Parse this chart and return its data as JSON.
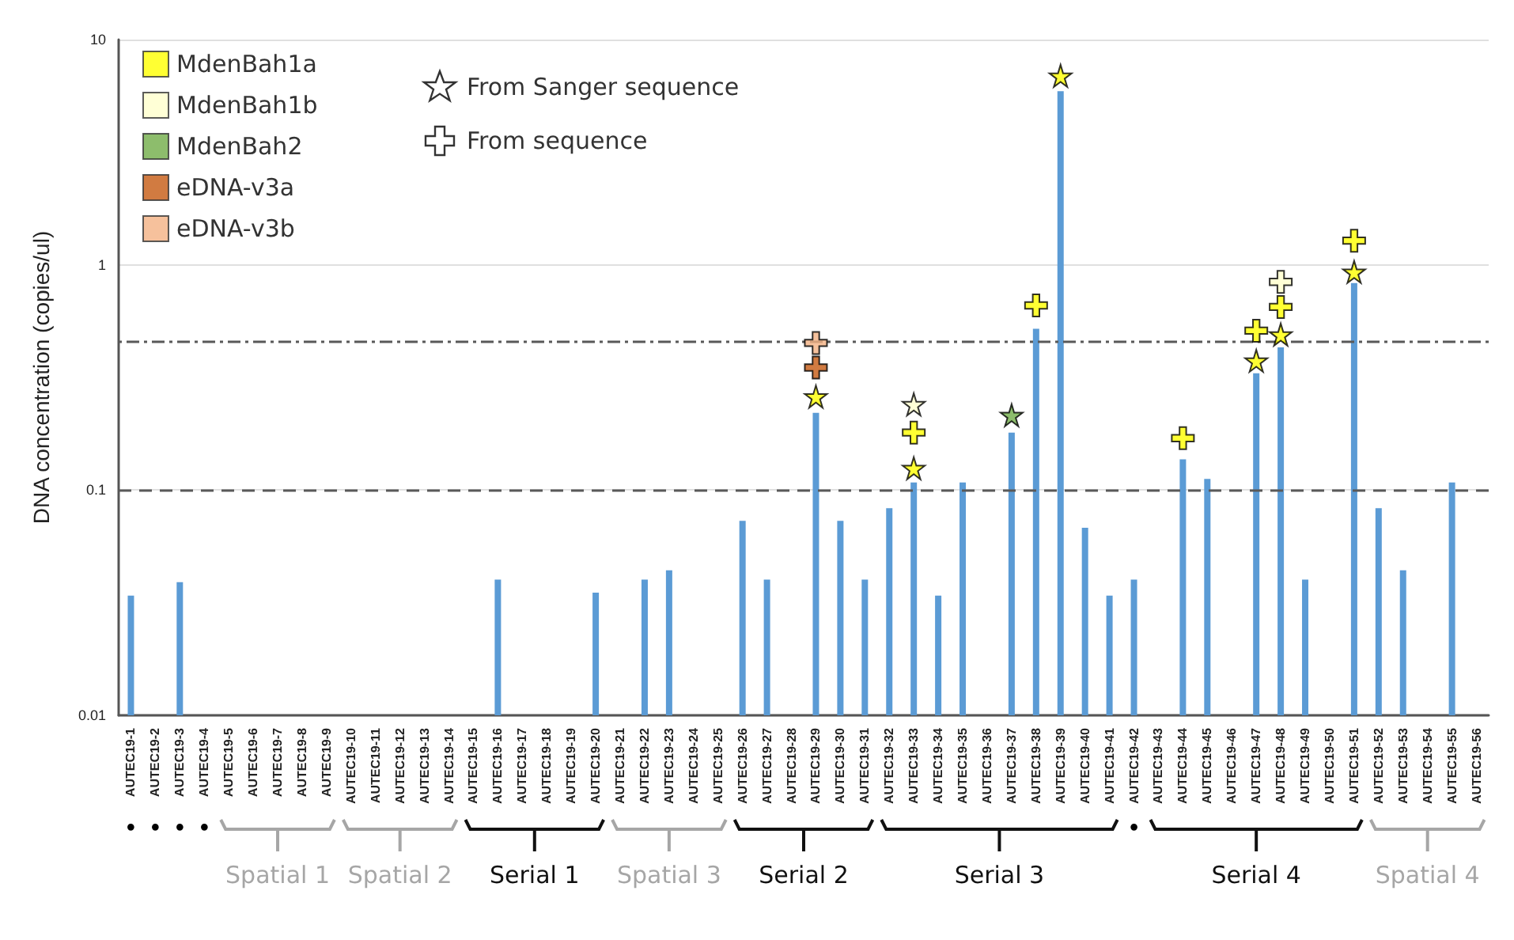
{
  "chart_data": {
    "type": "bar",
    "ylabel": "DNA concentration (copies/ul)",
    "categories": [
      "AUTEC19-1",
      "AUTEC19-2",
      "AUTEC19-3",
      "AUTEC19-4",
      "AUTEC19-5",
      "AUTEC19-6",
      "AUTEC19-7",
      "AUTEC19-8",
      "AUTEC19-9",
      "AUTEC19-10",
      "AUTEC19-11",
      "AUTEC19-12",
      "AUTEC19-13",
      "AUTEC19-14",
      "AUTEC19-15",
      "AUTEC19-16",
      "AUTEC19-17",
      "AUTEC19-18",
      "AUTEC19-19",
      "AUTEC19-20",
      "AUTEC19-21",
      "AUTEC19-22",
      "AUTEC19-23",
      "AUTEC19-24",
      "AUTEC19-25",
      "AUTEC19-26",
      "AUTEC19-27",
      "AUTEC19-28",
      "AUTEC19-29",
      "AUTEC19-30",
      "AUTEC19-31",
      "AUTEC19-32",
      "AUTEC19-33",
      "AUTEC19-34",
      "AUTEC19-35",
      "AUTEC19-36",
      "AUTEC19-37",
      "AUTEC19-38",
      "AUTEC19-39",
      "AUTEC19-40",
      "AUTEC19-41",
      "AUTEC19-42",
      "AUTEC19-43",
      "AUTEC19-44",
      "AUTEC19-45",
      "AUTEC19-46",
      "AUTEC19-47",
      "AUTEC19-48",
      "AUTEC19-49",
      "AUTEC19-50",
      "AUTEC19-51",
      "AUTEC19-52",
      "AUTEC19-53",
      "AUTEC19-54",
      "AUTEC19-55",
      "AUTEC19-56"
    ],
    "series": [
      {
        "color": "#5b9bd5",
        "values": [
          0.034,
          null,
          0.039,
          null,
          null,
          null,
          null,
          null,
          null,
          null,
          null,
          null,
          null,
          null,
          null,
          0.04,
          null,
          null,
          null,
          0.035,
          null,
          0.04,
          0.044,
          null,
          null,
          0.073,
          0.04,
          null,
          0.22,
          0.073,
          0.04,
          0.083,
          0.108,
          0.034,
          0.108,
          null,
          0.18,
          0.52,
          5.9,
          0.068,
          0.034,
          0.04,
          null,
          0.137,
          0.112,
          null,
          0.33,
          0.43,
          0.04,
          null,
          0.83,
          0.083,
          0.044,
          null,
          0.108,
          null
        ]
      },
      {
        "type": "scatter",
        "name": "MdenBah1a",
        "color": "#ffff00",
        "marker": "star",
        "x": [
          "AUTEC19-29",
          "AUTEC19-33",
          "AUTEC19-39",
          "AUTEC19-47",
          "AUTEC19-48",
          "AUTEC19-51"
        ],
        "values": [
          0.26,
          0.125,
          6.9,
          0.375,
          0.49,
          0.93
        ]
      },
      {
        "type": "scatter",
        "color": "#ffff00",
        "marker": "cross",
        "x": [
          "AUTEC19-33",
          "AUTEC19-38",
          "AUTEC19-44",
          "AUTEC19-47",
          "AUTEC19-48",
          "AUTEC19-51"
        ],
        "values": [
          0.18,
          0.66,
          0.17,
          0.51,
          0.65,
          1.28
        ]
      },
      {
        "type": "scatter",
        "name": "MdenBah1b",
        "color": "#ffffcc",
        "marker": "star",
        "x": [
          "AUTEC19-33"
        ],
        "values": [
          0.24
        ]
      },
      {
        "type": "scatter",
        "color": "#ffffcc",
        "marker": "cross",
        "x": [
          "AUTEC19-48"
        ],
        "values": [
          0.84
        ]
      },
      {
        "type": "scatter",
        "name": "MdenBah2",
        "color": "#70ad47",
        "marker": "star",
        "x": [
          "AUTEC19-37"
        ],
        "values": [
          0.215
        ]
      },
      {
        "type": "scatter",
        "name": "eDNA-v3a",
        "color": "#c55a11",
        "marker": "cross",
        "x": [
          "AUTEC19-29"
        ],
        "values": [
          0.35
        ]
      },
      {
        "type": "scatter",
        "name": "eDNA-v3b",
        "color": "#f4b183",
        "marker": "cross",
        "x": [
          "AUTEC19-29"
        ],
        "values": [
          0.45
        ]
      }
    ],
    "log": "y",
    "ylim": [
      0.01,
      10
    ],
    "yticks": [
      0.01,
      0.1,
      1,
      10
    ],
    "grid": "y",
    "legend": "top left",
    "ref_lines": [
      {
        "axis": "y",
        "value": 0.1,
        "line_style": "dashed",
        "color": "#595959"
      },
      {
        "axis": "y",
        "value": 0.46,
        "line_style": "dotted",
        "color": "#595959"
      }
    ],
    "annotations": [
      "From Sanger sequence",
      "From sequence",
      "•",
      "•",
      "•",
      "•",
      "Spatial 1",
      "Spatial 2",
      "Serial 1",
      "Spatial 3",
      "Serial 2",
      "Serial 3",
      "•",
      "Serial 4",
      "Spatial 4"
    ]
  }
}
